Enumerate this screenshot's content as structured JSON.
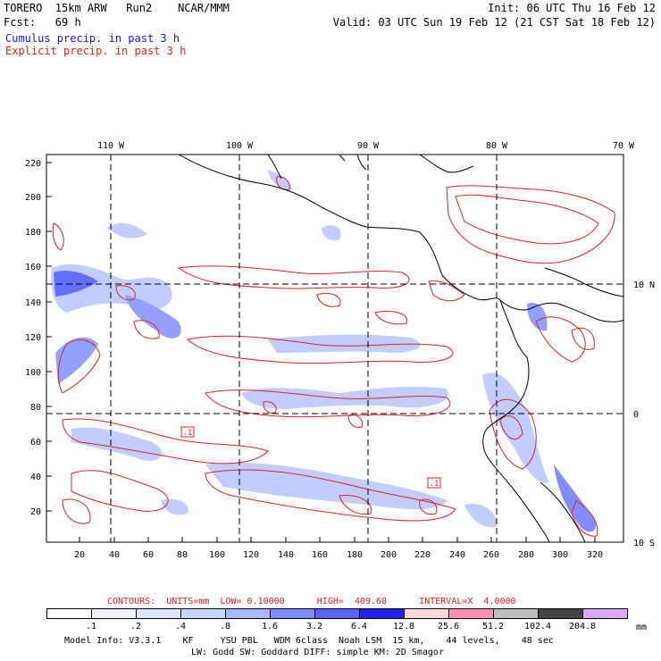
{
  "header": {
    "line1_left": "TORERO  15km ARW   Run2    NCAR/MMM",
    "line1_right": "Init: 06 UTC Thu 16 Feb 12",
    "line2_left": "Fcst:   69 h",
    "line2_right": "Valid: 03 UTC Sun 19 Feb 12 (21 CST Sat 18 Feb 12)",
    "legend_cumulus": "Cumulus precip. in past 3 h",
    "legend_explicit": "Explicit precip. in past 3 h"
  },
  "map": {
    "lon_labels": [
      "110 W",
      "100 W",
      "90 W",
      "80 W",
      "70 W"
    ],
    "lat_labels_right": [
      "10 N",
      "0",
      "10 S"
    ],
    "y_ticks": [
      "220",
      "200",
      "180",
      "160",
      "140",
      "120",
      "100",
      "80",
      "60",
      "40",
      "20"
    ],
    "x_ticks": [
      "20",
      "40",
      "60",
      "80",
      "100",
      "120",
      "140",
      "160",
      "180",
      "200",
      "220",
      "240",
      "260",
      "280",
      "300",
      "320"
    ],
    "contour_box_labels": [
      ".1",
      ".1"
    ]
  },
  "contours_line": {
    "label": "CONTOURS:  UNITS=mm  LOW= 0.10000      HIGH=  409.60      INTERVAL=X  4.0000"
  },
  "colorbar": {
    "labels": [
      ".1",
      ".2",
      ".4",
      ".8",
      "1.6",
      "3.2",
      "6.4",
      "12.8",
      "25.6",
      "51.2",
      "102.4",
      "204.8"
    ],
    "unit": "mm",
    "colors": [
      "#ffffff",
      "#eef3ff",
      "#dde6ff",
      "#c6d6ff",
      "#a6b8ff",
      "#7f8fff",
      "#5a64ff",
      "#2222ee",
      "#ffd8d8",
      "#ff8fb0",
      "#bdbdbd",
      "#444444",
      "#d8a8ff"
    ]
  },
  "footer": {
    "line1": "Model Info: V3.3.1    KF     YSU PBL   WDM 6class  Noah LSM  15 km,    44 levels,    48 sec",
    "line2": "LW: Godd SW: Goddard DIFF: simple KM: 2D Smagor"
  }
}
